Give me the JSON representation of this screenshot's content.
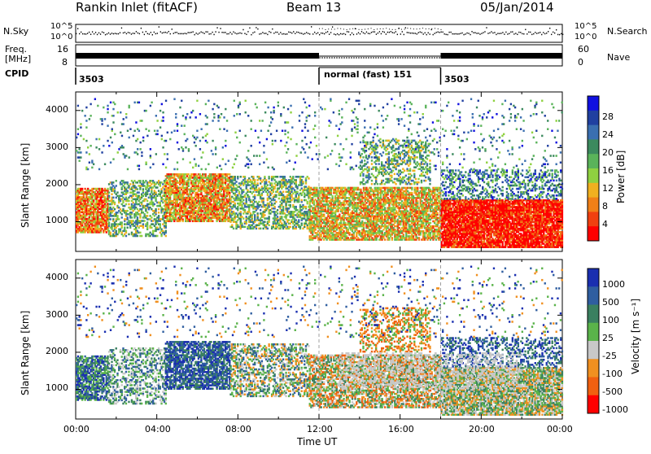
{
  "header": {
    "station": "Rankin Inlet (fitACF)",
    "beam": "Beam 13",
    "date": "05/Jan/2014"
  },
  "top_panels": {
    "nsky_label": "N.Sky",
    "nsky_ticks": [
      "10^5",
      "10^0"
    ],
    "nsearch_label": "N.Search",
    "nsearch_ticks": [
      "10^5",
      "10^0"
    ],
    "freq_label_1": "Freq.",
    "freq_label_2": "[MHz]",
    "freq_ticks": [
      "16",
      "8"
    ],
    "nave_label": "Nave",
    "nave_ticks": [
      "60",
      "0"
    ],
    "cpid_label": "CPID",
    "cpid_segments": [
      {
        "label": "3503",
        "start_hour": 0,
        "end_hour": 12
      },
      {
        "label": "normal (fast) 151",
        "start_hour": 12,
        "end_hour": 18
      },
      {
        "label": "3503",
        "start_hour": 18,
        "end_hour": 24
      }
    ]
  },
  "chart_data": [
    {
      "type": "heatmap",
      "quantity": "Power",
      "ylabel": "Slant Range [km]",
      "xlabel": "",
      "xlim": [
        0,
        24
      ],
      "ylim": [
        200,
        4500
      ],
      "y_ticks": [
        "1000",
        "2000",
        "3000",
        "4000"
      ],
      "colorbar_label": "Power [dB]",
      "colorbar_ticks": [
        "28",
        "24",
        "20",
        "16",
        "12",
        "8",
        "4"
      ],
      "colorbar_colors": [
        "#1010e0",
        "#2040a0",
        "#3a6fb0",
        "#3c8a5e",
        "#5ab35a",
        "#8fd140",
        "#f0b020",
        "#f08018",
        "#f04010",
        "#ff0000"
      ],
      "features": [
        {
          "t_start": 0,
          "t_end": 1.5,
          "r_low": 800,
          "r_high": 1900,
          "level": "high"
        },
        {
          "t_start": 4.5,
          "t_end": 7.5,
          "r_low": 1000,
          "r_high": 2200,
          "level": "high"
        },
        {
          "t_start": 11,
          "t_end": 18,
          "r_low": 600,
          "r_high": 1800,
          "level": "high"
        },
        {
          "t_start": 18,
          "t_end": 24,
          "r_low": 300,
          "r_high": 1700,
          "level": "very-high"
        }
      ]
    },
    {
      "type": "heatmap",
      "quantity": "Velocity",
      "ylabel": "Slant Range [km]",
      "xlabel": "Time UT",
      "xlim": [
        0,
        24
      ],
      "ylim": [
        200,
        4500
      ],
      "y_ticks": [
        "1000",
        "2000",
        "3000",
        "4000"
      ],
      "x_ticks": [
        "00:00",
        "04:00",
        "08:00",
        "12:00",
        "16:00",
        "20:00",
        "00:00"
      ],
      "colorbar_label": "Velocity [m s⁻¹]",
      "colorbar_ticks": [
        "1000",
        "500",
        "100",
        "25",
        "-25",
        "-100",
        "-500",
        "-1000"
      ],
      "colorbar_colors": [
        "#1a2fb0",
        "#2f5ea0",
        "#3a8060",
        "#5ab34a",
        "#c8c8c8",
        "#f09020",
        "#f06010",
        "#ff0000"
      ]
    }
  ],
  "colors": {
    "gray_scatter": "#c8c8c8",
    "divider": "#a0a0a0"
  }
}
